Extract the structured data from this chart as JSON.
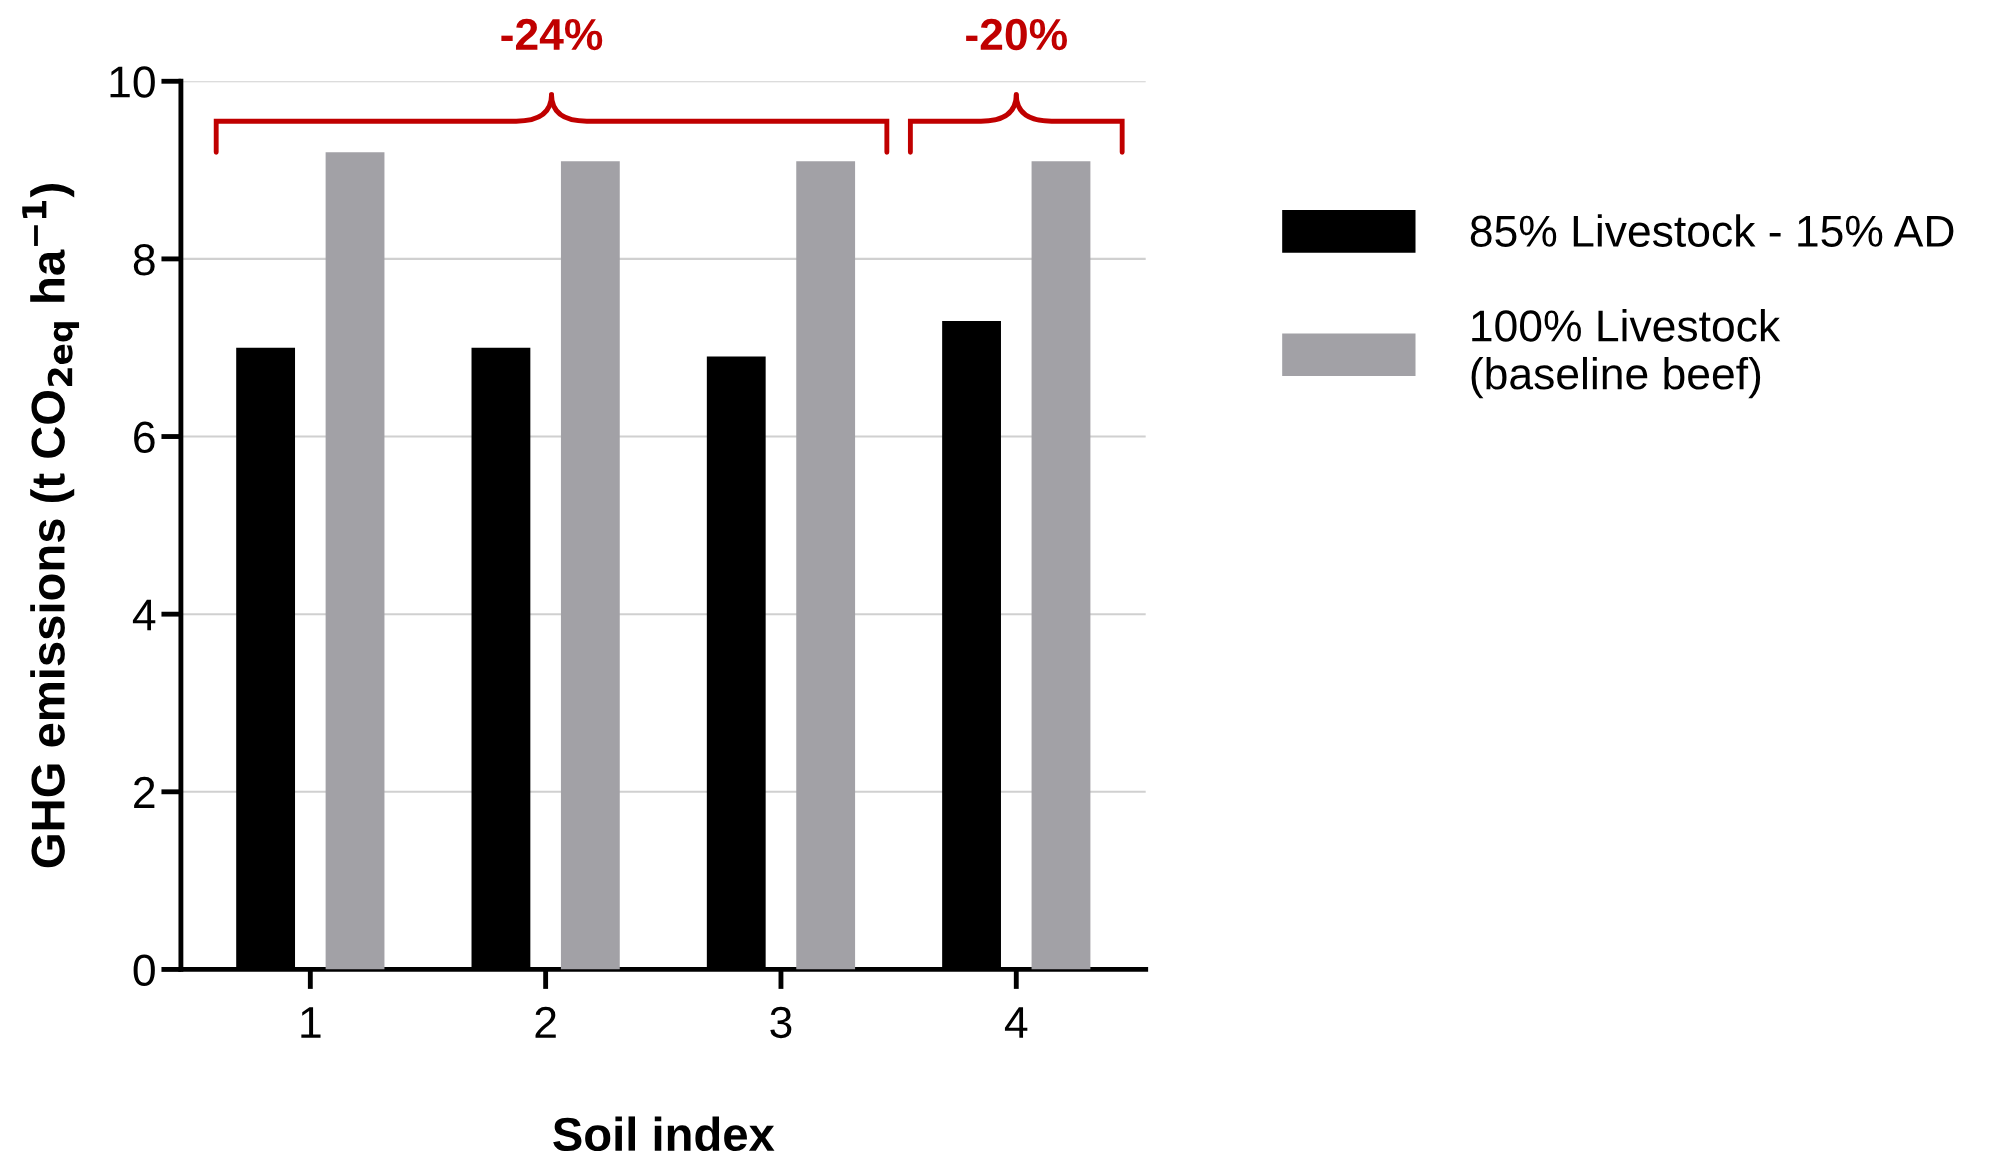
{
  "chart_data": {
    "type": "bar",
    "xlabel": "Soil index",
    "ylabel": "GHG emissions (t CO$_{2eq}$ ha$^{−1}$)",
    "categories": [
      "1",
      "2",
      "3",
      "4"
    ],
    "series": [
      {
        "name": "85% Livestock - 15% AD",
        "color": "#000000",
        "values": [
          7.0,
          7.0,
          6.9,
          7.3
        ]
      },
      {
        "name": "100% Livestock\n(baseline beef)",
        "color": "#a2a1a6",
        "values": [
          9.2,
          9.1,
          9.1,
          9.1
        ]
      }
    ],
    "ylim": [
      0,
      10
    ],
    "yticks": [
      0,
      2,
      4,
      6,
      8,
      10
    ],
    "grid": "y",
    "legend": "right",
    "annotations": [
      "-24%",
      "-20%"
    ]
  }
}
